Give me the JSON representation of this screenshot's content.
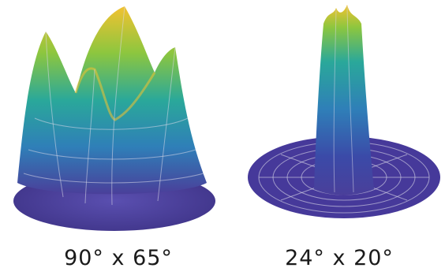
{
  "figures": [
    {
      "id": "wide",
      "caption": "90° x 65°"
    },
    {
      "id": "narrow",
      "caption": "24° x 20°"
    }
  ],
  "colors": {
    "base": "#4a3f9a",
    "low": "#3b4aa8",
    "mid_blue": "#2f7fb8",
    "teal": "#2aa89a",
    "green": "#8cc63f",
    "peak": "#f2c230",
    "grid": "#d8d8e8"
  }
}
